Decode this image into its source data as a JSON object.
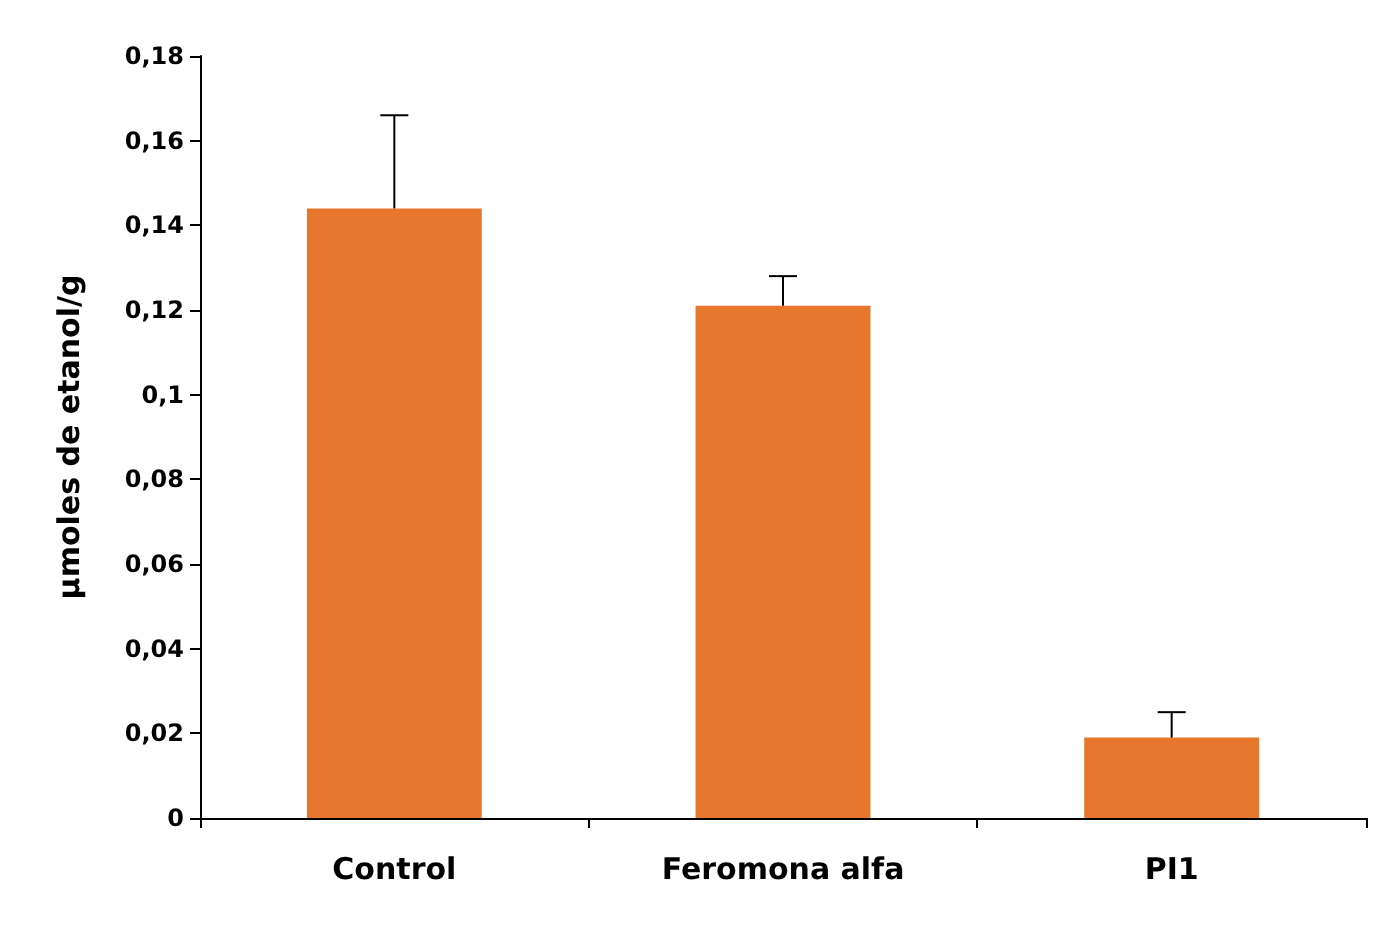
{
  "chart_data": {
    "type": "bar",
    "ylabel": "µmoles de etanol/g",
    "categories": [
      "Control",
      "Feromona alfa",
      "PI1"
    ],
    "values": [
      0.144,
      0.121,
      0.019
    ],
    "errors": [
      [
        0.144,
        0.166
      ],
      [
        0.121,
        0.128
      ],
      [
        0.019,
        0.025
      ]
    ],
    "color": "#e8772e",
    "ylim": [
      0,
      0.18
    ],
    "yticks": [
      {
        "value": 0,
        "label": "0"
      },
      {
        "value": 0.02,
        "label": "0,02"
      },
      {
        "value": 0.04,
        "label": "0,04"
      },
      {
        "value": 0.06,
        "label": "0,06"
      },
      {
        "value": 0.08,
        "label": "0,08"
      },
      {
        "value": 0.1,
        "label": "0,1"
      },
      {
        "value": 0.12,
        "label": "0,12"
      },
      {
        "value": 0.14,
        "label": "0,14"
      },
      {
        "value": 0.16,
        "label": "0,16"
      },
      {
        "value": 0.18,
        "label": "0,18"
      }
    ],
    "grid": false
  }
}
